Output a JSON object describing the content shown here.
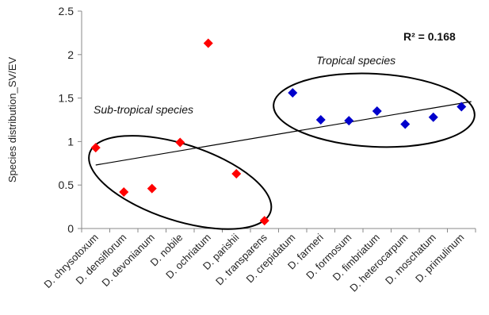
{
  "chart_data": {
    "type": "scatter",
    "ylabel": "Species distribution_SV/EV",
    "ylim": [
      0,
      2.5
    ],
    "yticks": [
      "0",
      "0.5",
      "1",
      "1.5",
      "2",
      "2.5"
    ],
    "categories": [
      "D. chrysotoxum",
      "D. densiflorum",
      "D. devonianum",
      "D. nobile",
      "D. ochriatum",
      "D. parishii",
      "D. transparens",
      "D. crepidatum",
      "D. farmeri",
      "D. formosum",
      "D. fimbriatum",
      "D. heterocarpum",
      "D. moschatum",
      "D. primulinum"
    ],
    "series": [
      {
        "color": "#ff0000",
        "marker": "diamond",
        "x_index": [
          0,
          1,
          2,
          3,
          4,
          5,
          6
        ],
        "values": [
          0.93,
          0.42,
          0.46,
          0.99,
          2.13,
          0.63,
          0.09
        ]
      },
      {
        "color": "#0000cc",
        "marker": "diamond",
        "x_index": [
          7,
          8,
          9,
          10,
          11,
          12,
          13
        ],
        "values": [
          1.56,
          1.25,
          1.24,
          1.35,
          1.2,
          1.28,
          1.4
        ]
      }
    ],
    "trendline": {
      "type": "linear",
      "x_start_index": 0,
      "y_start": 0.73,
      "x_end_index": 14,
      "y_end": 1.46
    },
    "annotations": {
      "r_squared": "R² = 0.168",
      "group_subtropical": "Sub-tropical species",
      "group_tropical": "Tropical species"
    },
    "grid": false
  }
}
